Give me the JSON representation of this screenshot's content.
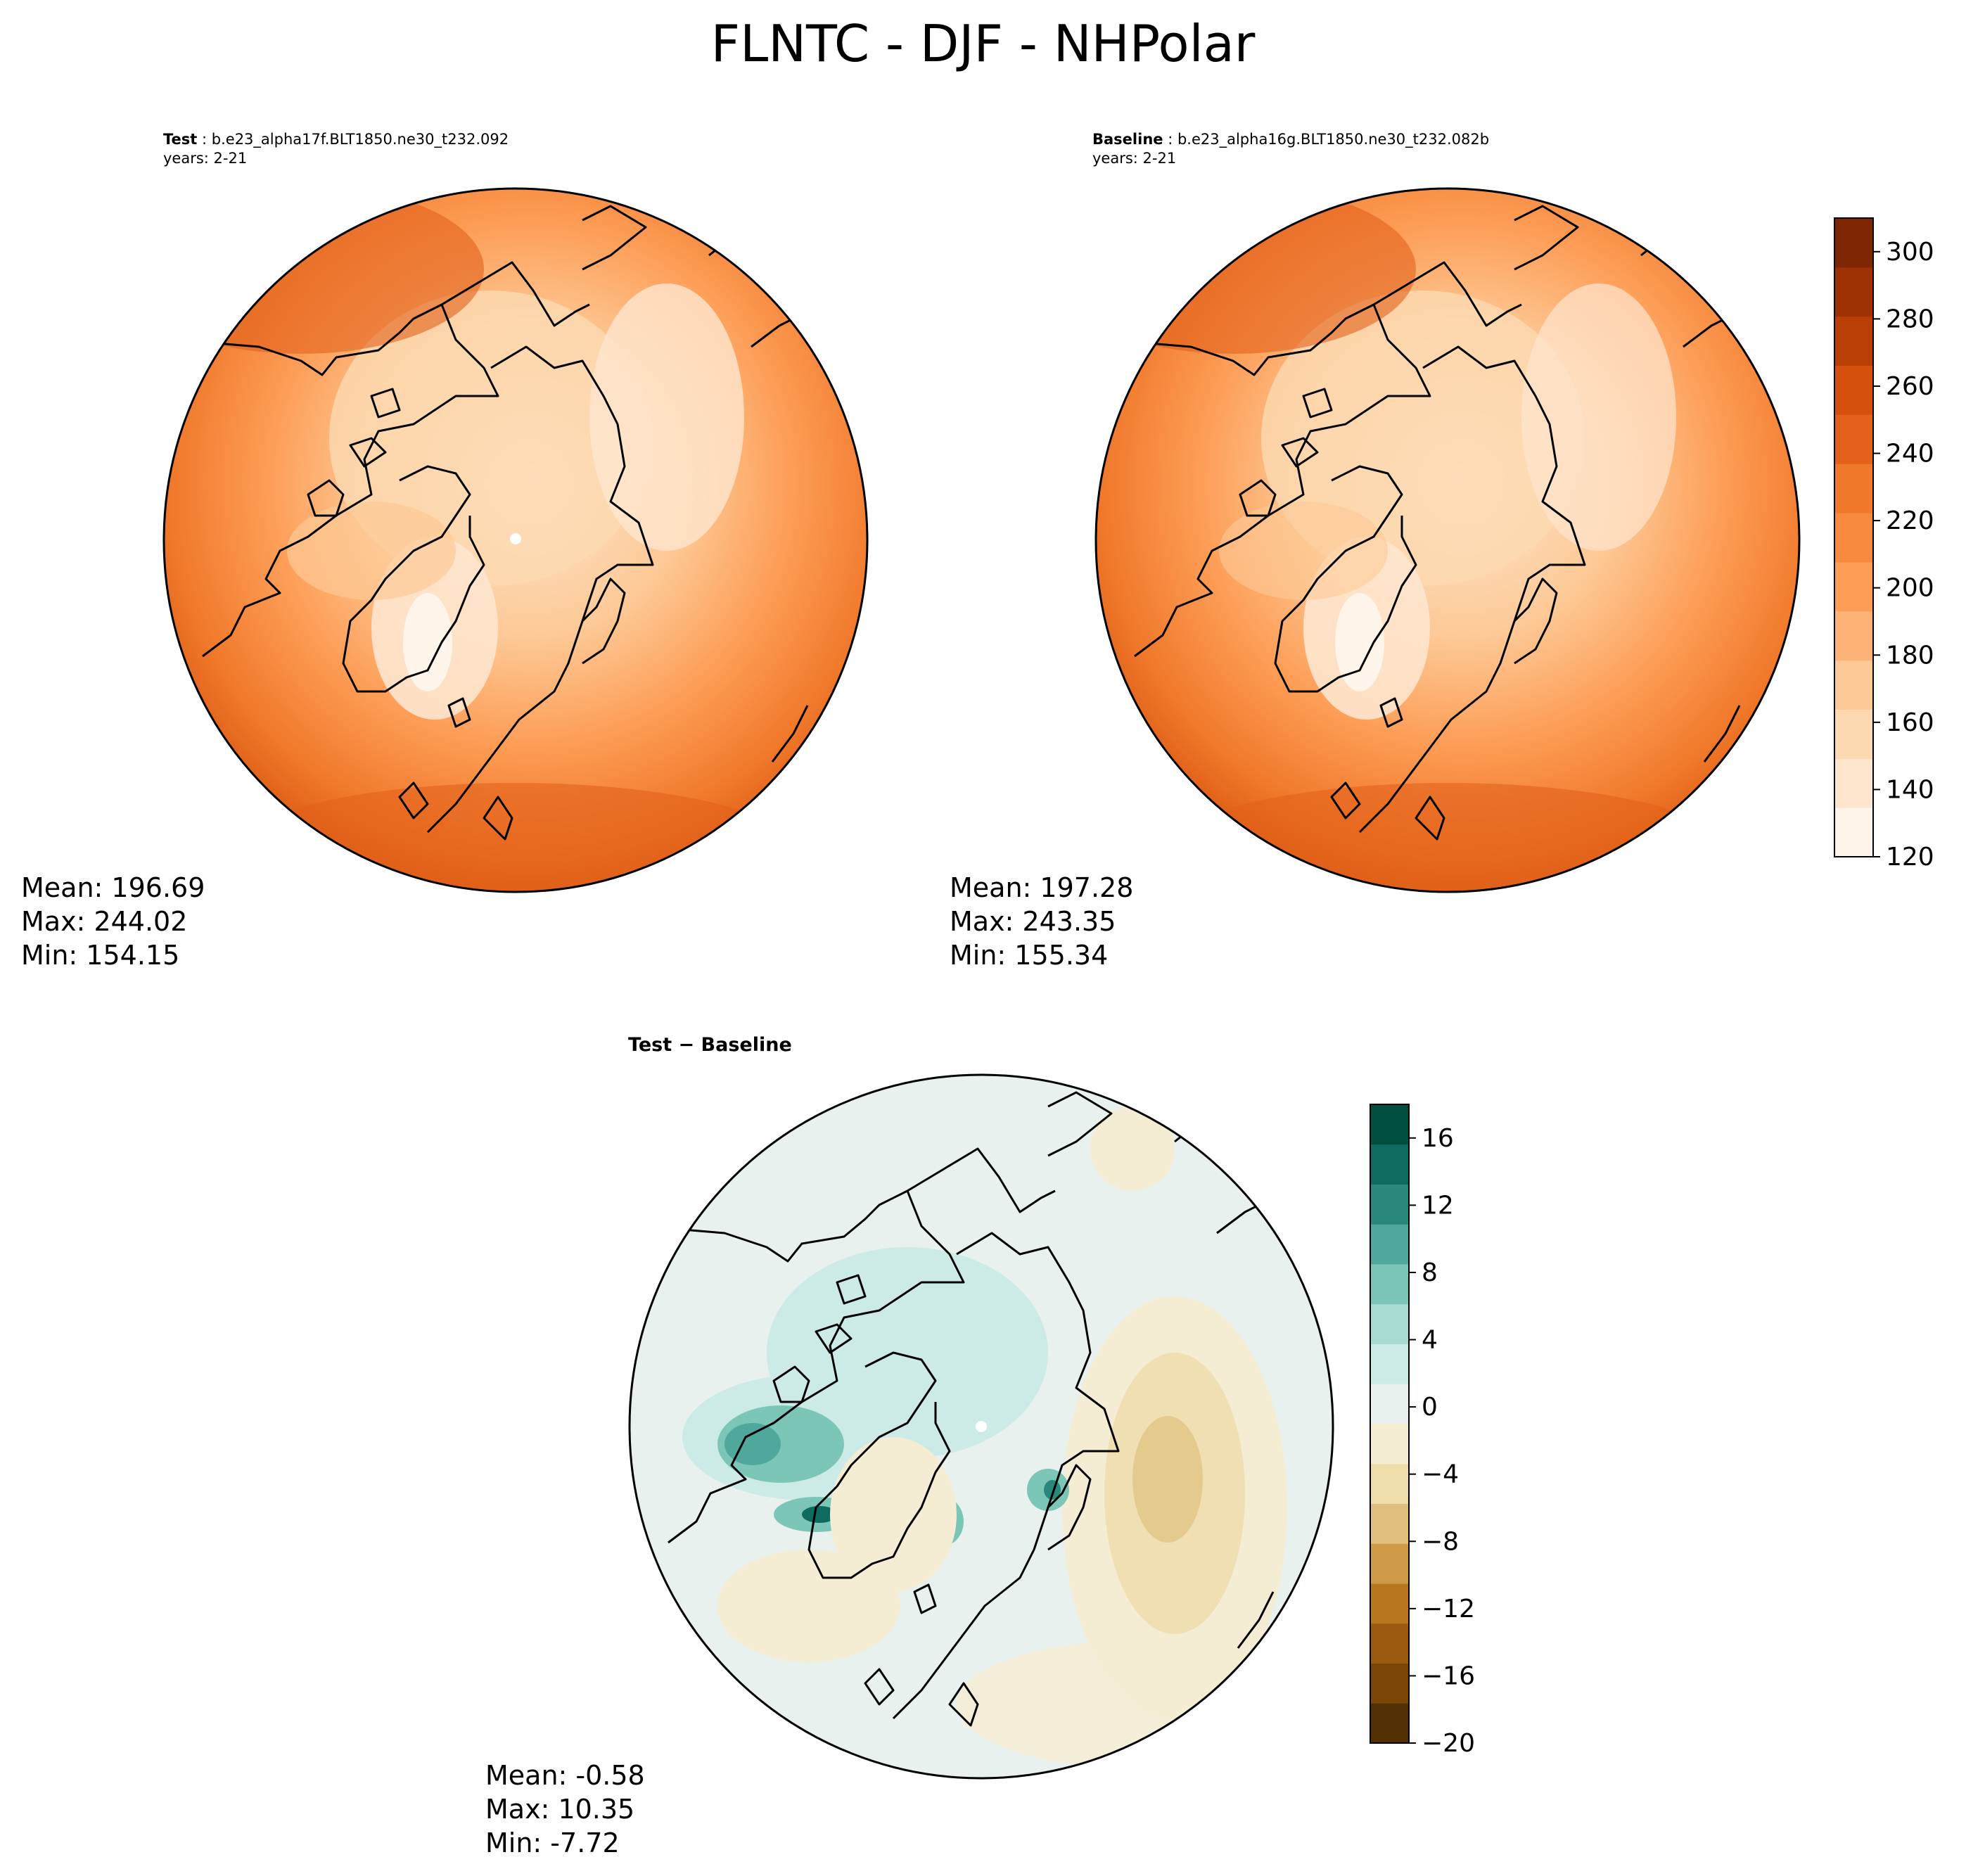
{
  "figure": {
    "title": "FLNTC - DJF - NHPolar"
  },
  "panels": {
    "test": {
      "label": "Test",
      "case": "b.e23_alpha17f.BLT1850.ne30_t232.092",
      "years": "years: 2-21",
      "mean": "Mean: 196.69",
      "max": "Max: 244.02",
      "min": "Min: 154.15"
    },
    "baseline": {
      "label": "Baseline",
      "case": "b.e23_alpha16g.BLT1850.ne30_t232.082b",
      "years": "years: 2-21",
      "mean": "Mean: 197.28",
      "max": "Max: 243.35",
      "min": "Min: 155.34"
    },
    "diff": {
      "label": "Test − Baseline",
      "mean": "Mean: -0.58",
      "max": "Max: 10.35",
      "min": "Min: -7.72"
    }
  },
  "colorbars": {
    "main": {
      "ticks": [
        "120",
        "140",
        "160",
        "180",
        "200",
        "220",
        "240",
        "260",
        "280",
        "300"
      ],
      "range": [
        120,
        310
      ],
      "colors": [
        "#fff5eb",
        "#fee6ce",
        "#fdd9b2",
        "#fdc996",
        "#fdb376",
        "#fd9c55",
        "#f88a3e",
        "#f0782a",
        "#e3611a",
        "#d4500c",
        "#b93f05",
        "#9e3204",
        "#7f2704"
      ]
    },
    "diff": {
      "ticks": [
        "16",
        "12",
        "8",
        "4",
        "0",
        "−4",
        "−8",
        "−12",
        "−16",
        "−20"
      ],
      "range": [
        -20,
        18
      ],
      "colors": [
        "#543005",
        "#7a4608",
        "#9a5b10",
        "#b8761e",
        "#cf9a48",
        "#e0c07c",
        "#eedcaa",
        "#f5ecd4",
        "#e9f1ef",
        "#cdebe6",
        "#a8dcd2",
        "#7cc6b8",
        "#4fa89b",
        "#2a877b",
        "#0f6b5f",
        "#01503f"
      ]
    }
  }
}
